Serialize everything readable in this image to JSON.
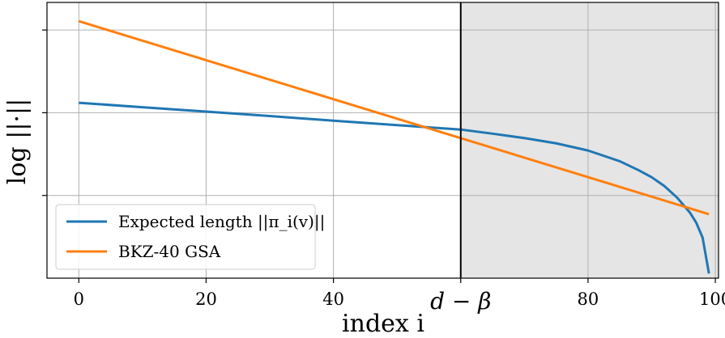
{
  "chart_data": {
    "type": "line",
    "xlabel": "index i",
    "ylabel": "log ||·||",
    "xlim": [
      -5,
      100.5
    ],
    "ylim": [
      0,
      1
    ],
    "x_ticks": [
      0,
      20,
      40,
      60,
      80,
      100
    ],
    "x_tick_labels": [
      "0",
      "20",
      "40",
      "d − β",
      "80",
      "100"
    ],
    "y_ticks": [
      0.3,
      0.6,
      0.9
    ],
    "grid": true,
    "shaded_region": {
      "from": 60,
      "to": 100.5,
      "color": "#e5e5e5"
    },
    "vertical_line": {
      "x": 60,
      "color": "#000000"
    },
    "legend_position": "lower-left",
    "series": [
      {
        "name": "Expected length ||π_i(v)||",
        "color": "#1f77b4",
        "x": [
          0,
          10,
          20,
          30,
          40,
          50,
          60,
          65,
          70,
          75,
          80,
          85,
          88,
          90,
          92,
          94,
          96,
          97,
          98,
          99
        ],
        "y": [
          0.636,
          0.62,
          0.604,
          0.588,
          0.571,
          0.555,
          0.539,
          0.524,
          0.508,
          0.489,
          0.463,
          0.424,
          0.391,
          0.366,
          0.334,
          0.292,
          0.238,
          0.201,
          0.147,
          0.017
        ]
      },
      {
        "name": "BKZ-40 GSA",
        "color": "#ff7f0e",
        "x": [
          0,
          99
        ],
        "y": [
          0.932,
          0.232
        ]
      }
    ]
  }
}
